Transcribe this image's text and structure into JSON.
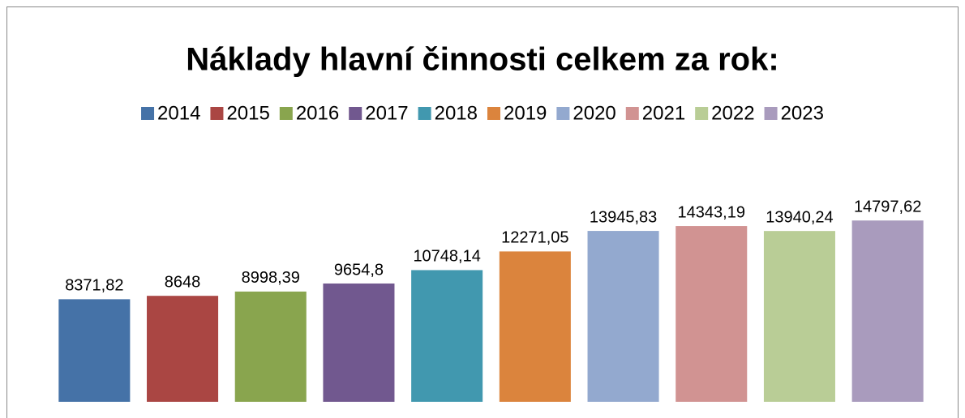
{
  "chart_data": {
    "type": "bar",
    "title": "Náklady hlavní činnosti celkem za rok:",
    "categories": [
      null
    ],
    "series": [
      {
        "name": "2014",
        "color": "#4572a7",
        "values": [
          8371.82
        ],
        "value_labels": [
          "8371,82"
        ]
      },
      {
        "name": "2015",
        "color": "#aa4643",
        "values": [
          8648
        ],
        "value_labels": [
          "8648"
        ]
      },
      {
        "name": "2016",
        "color": "#89a54e",
        "values": [
          8998.39
        ],
        "value_labels": [
          "8998,39"
        ]
      },
      {
        "name": "2017",
        "color": "#71588f",
        "values": [
          9654.8
        ],
        "value_labels": [
          "9654,8"
        ]
      },
      {
        "name": "2018",
        "color": "#4198af",
        "values": [
          10748.14
        ],
        "value_labels": [
          "10748,14"
        ]
      },
      {
        "name": "2019",
        "color": "#db843d",
        "values": [
          12271.05
        ],
        "value_labels": [
          "12271,05"
        ]
      },
      {
        "name": "2020",
        "color": "#93a9cf",
        "values": [
          13945.83
        ],
        "value_labels": [
          "13945,83"
        ]
      },
      {
        "name": "2021",
        "color": "#d19392",
        "values": [
          14343.19
        ],
        "value_labels": [
          "14343,19"
        ]
      },
      {
        "name": "2022",
        "color": "#b9cd96",
        "values": [
          13940.24
        ],
        "value_labels": [
          "13940,24"
        ]
      },
      {
        "name": "2023",
        "color": "#a99bbd",
        "values": [
          14797.62
        ],
        "value_labels": [
          "14797,62"
        ]
      }
    ],
    "ylim": [
      0,
      16000
    ],
    "legend": "top"
  }
}
